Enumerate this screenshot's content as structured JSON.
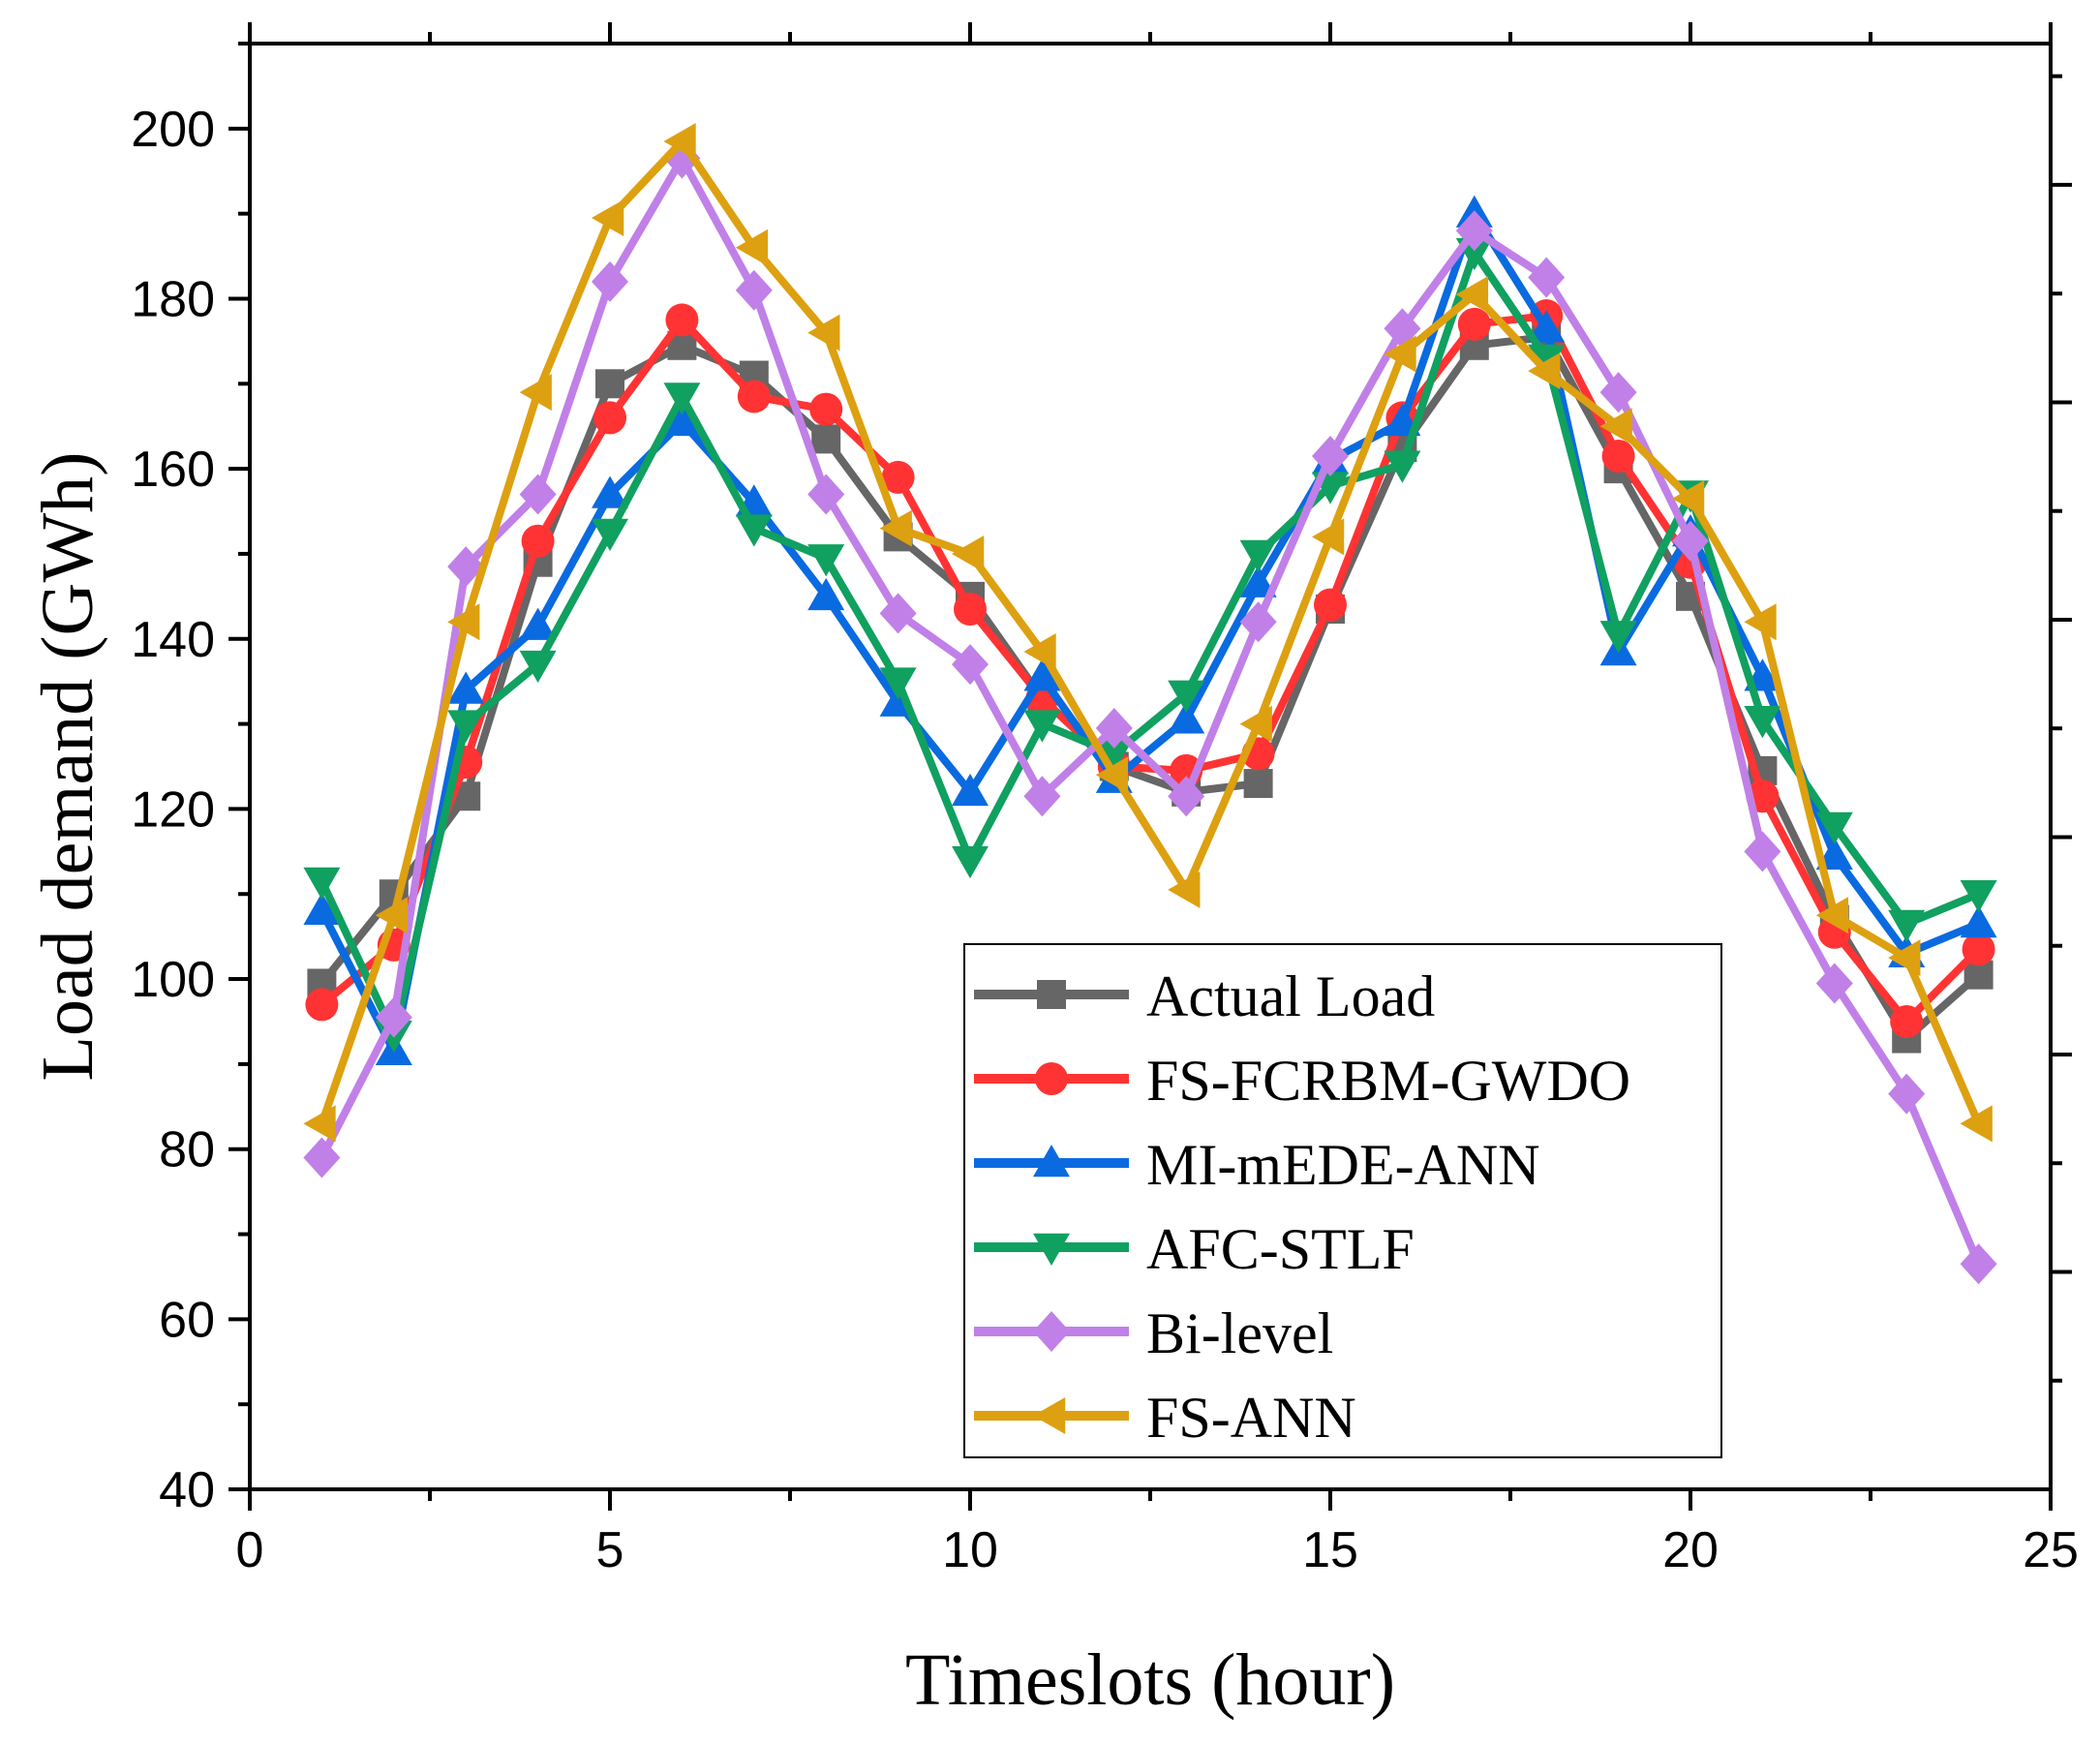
{
  "chart_data": {
    "type": "line",
    "xlabel": "Timeslots (hour)",
    "ylabel": "Load demand (GWh)",
    "xlim": [
      0,
      25
    ],
    "ylim": [
      40,
      210
    ],
    "xticks": [
      0,
      5,
      10,
      15,
      20,
      25
    ],
    "yticks": [
      40,
      60,
      80,
      100,
      120,
      140,
      160,
      180,
      200
    ],
    "grid": false,
    "legend_position": "bottom-right",
    "x": [
      1,
      2,
      3,
      4,
      5,
      6,
      7,
      8,
      9,
      10,
      11,
      12,
      13,
      14,
      15,
      16,
      17,
      18,
      19,
      20,
      21,
      22,
      23,
      24
    ],
    "series": [
      {
        "name": "Actual Load",
        "color": "#666666",
        "marker": "square",
        "values": [
          99.5,
          110,
          121.5,
          149,
          170,
          174.5,
          171,
          163.5,
          152,
          145,
          133,
          125,
          122,
          123,
          143.5,
          162.5,
          174.5,
          175.5,
          160,
          145,
          124.5,
          107,
          93,
          100.5
        ]
      },
      {
        "name": "FS-FCRBM-GWDO",
        "color": "#ff3333",
        "marker": "circle",
        "values": [
          97,
          104,
          125.5,
          151.5,
          166,
          177.5,
          168.5,
          167,
          159,
          143.5,
          133,
          125,
          124.5,
          126.5,
          144,
          166,
          177,
          178,
          161.5,
          149,
          121.5,
          105.5,
          95,
          103.5
        ]
      },
      {
        "name": "MI-mEDE-ANN",
        "color": "#0a6ae0",
        "marker": "triangle-up",
        "values": [
          108,
          91.5,
          134,
          141.5,
          157,
          165.5,
          156,
          145,
          132.5,
          122,
          135.5,
          123.5,
          130.5,
          146.5,
          161,
          165.5,
          190,
          176.5,
          138.5,
          152.5,
          135.5,
          114.5,
          103,
          106.5
        ]
      },
      {
        "name": "AFC-STLF",
        "color": "#10a060",
        "marker": "triangle-down",
        "values": [
          111.5,
          93.5,
          130,
          137,
          152.5,
          168.5,
          153,
          149.5,
          135,
          114,
          130,
          126.5,
          133.5,
          150,
          158,
          160.5,
          185.5,
          173,
          140.5,
          157,
          130.5,
          118,
          106.5,
          110
        ]
      },
      {
        "name": "Bi-level",
        "color": "#c080e8",
        "marker": "diamond",
        "values": [
          79,
          95.5,
          148.5,
          157,
          182,
          196.5,
          181,
          157,
          143,
          137,
          121.5,
          129.5,
          121.5,
          142,
          161.5,
          176.5,
          188,
          182.5,
          169,
          151.5,
          115,
          99.5,
          86.5,
          66.5
        ]
      },
      {
        "name": "FS-ANN",
        "color": "#dda010",
        "marker": "triangle-left",
        "values": [
          83,
          107.5,
          142,
          169,
          189.5,
          198.5,
          186,
          176,
          153,
          150,
          138.5,
          124,
          110.5,
          130,
          152,
          173.5,
          180.5,
          171.5,
          165,
          156.5,
          142,
          107.5,
          102.5,
          83
        ]
      }
    ]
  }
}
